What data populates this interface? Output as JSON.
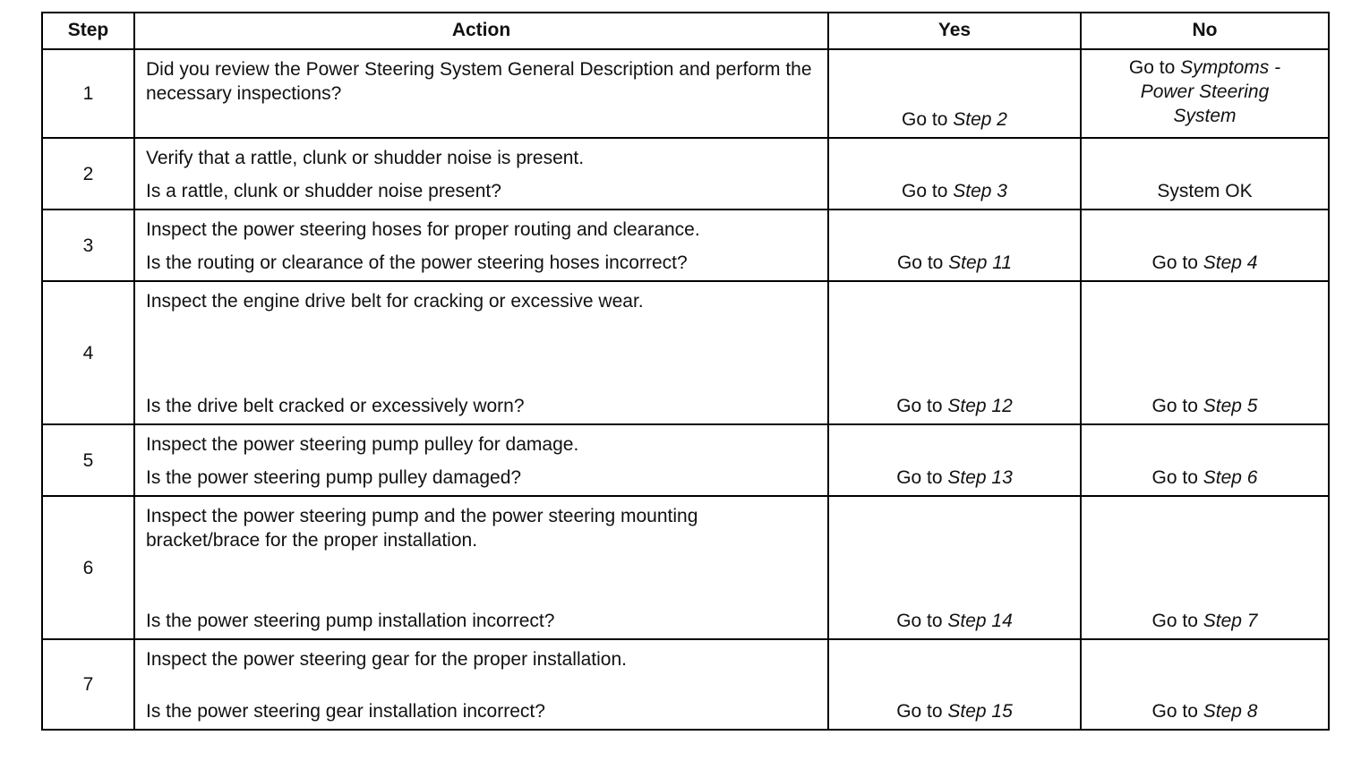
{
  "headers": {
    "step": "Step",
    "action": "Action",
    "yes": "Yes",
    "no": "No"
  },
  "rows": [
    {
      "step": "1",
      "action": "Did you review the Power Steering System General Description and perform the necessary inspections?",
      "question": "",
      "yes_prefix": "Go to ",
      "yes_target": "Step 2",
      "no_prefix": "Go to ",
      "no_target": "Symptoms - Power Steering System"
    },
    {
      "step": "2",
      "action": "Verify that a rattle, clunk or shudder noise is present.",
      "question": "Is a rattle, clunk or shudder noise present?",
      "yes_prefix": "Go to ",
      "yes_target": "Step 3",
      "no_prefix": "System OK",
      "no_target": ""
    },
    {
      "step": "3",
      "action": "Inspect the power steering hoses for proper routing and clearance.",
      "question": "Is the routing or clearance of the power steering hoses incorrect?",
      "yes_prefix": "Go to ",
      "yes_target": "Step 11",
      "no_prefix": "Go to ",
      "no_target": "Step 4"
    },
    {
      "step": "4",
      "action": "Inspect the engine drive belt for cracking or excessive wear.",
      "question": "Is the drive belt cracked or excessively worn?",
      "yes_prefix": "Go to ",
      "yes_target": "Step 12",
      "no_prefix": "Go to ",
      "no_target": "Step 5"
    },
    {
      "step": "5",
      "action": "Inspect the power steering pump pulley for damage.",
      "question": "Is the power steering pump pulley damaged?",
      "yes_prefix": "Go to ",
      "yes_target": "Step 13",
      "no_prefix": "Go to ",
      "no_target": "Step 6"
    },
    {
      "step": "6",
      "action": "Inspect the power steering pump and the power steering mounting bracket/brace for the proper installation.",
      "question": "Is the power steering pump installation incorrect?",
      "yes_prefix": "Go to ",
      "yes_target": "Step 14",
      "no_prefix": "Go to ",
      "no_target": "Step 7"
    },
    {
      "step": "7",
      "action": "Inspect the power steering gear for the proper installation.",
      "question": "Is the power steering gear installation incorrect?",
      "yes_prefix": "Go to ",
      "yes_target": "Step 15",
      "no_prefix": "Go to ",
      "no_target": "Step 8"
    }
  ]
}
